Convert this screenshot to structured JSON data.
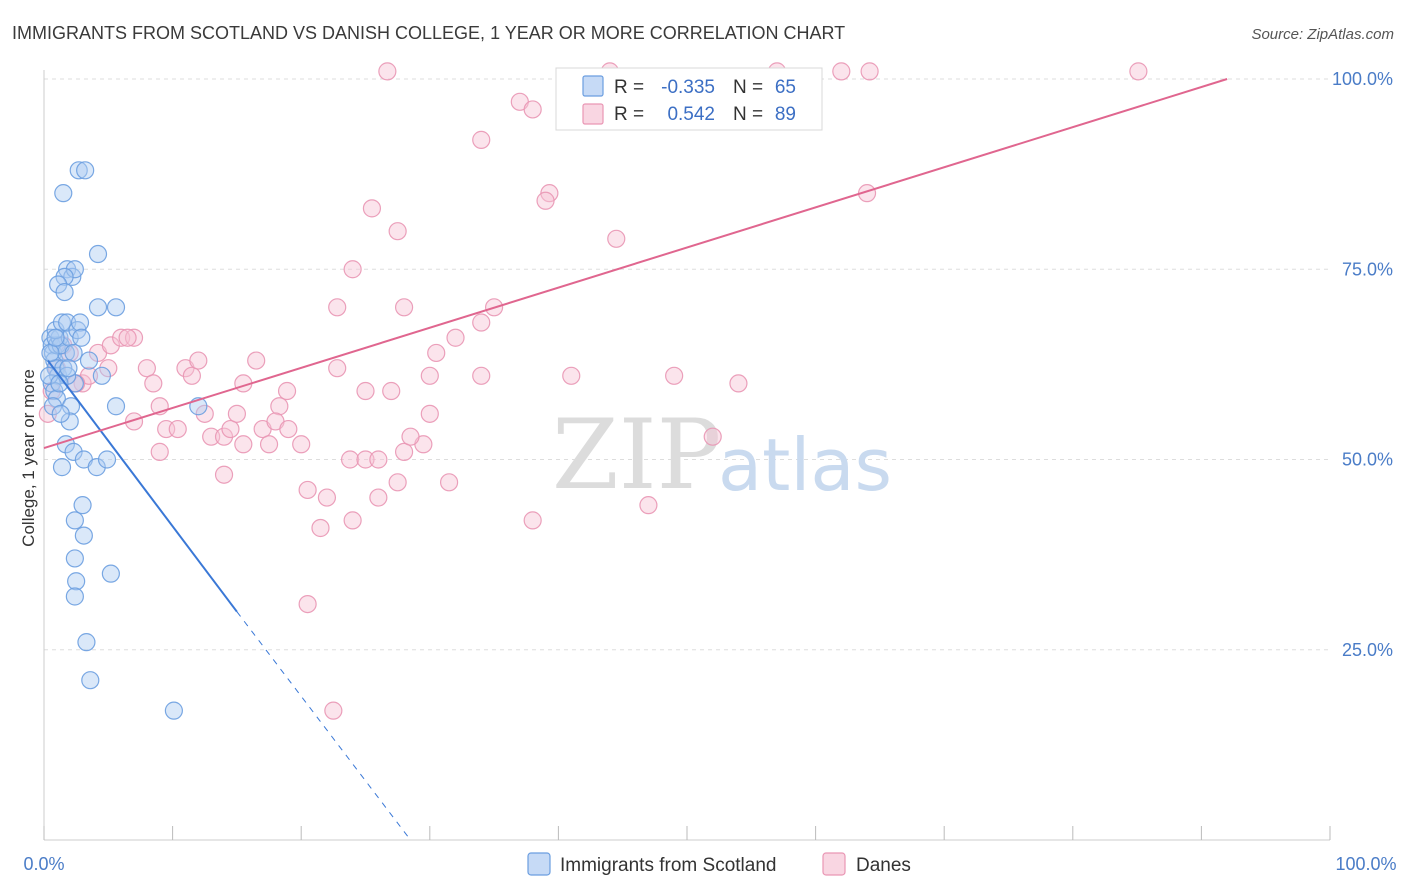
{
  "title": "IMMIGRANTS FROM SCOTLAND VS DANISH COLLEGE, 1 YEAR OR MORE CORRELATION CHART",
  "source": "Source: ZipAtlas.com",
  "watermark": {
    "zip": "ZIP",
    "atlas": "atlas"
  },
  "stats": {
    "r_label": "R =",
    "n_label": "N =",
    "scotland": {
      "r": "-0.335",
      "n": "65"
    },
    "danes": {
      "r": "0.542",
      "n": "89"
    }
  },
  "colors": {
    "scotland_fill": "#aecbf2",
    "scotland_stroke": "#6b9ee0",
    "scotland_line": "#3a78d6",
    "danes_fill": "#f7c4d5",
    "danes_stroke": "#e996b4",
    "danes_line": "#e0668f",
    "tick_text": "#4a7cc7",
    "grid": "#dddddd"
  },
  "chart_data": {
    "type": "scatter",
    "title": "IMMIGRANTS FROM SCOTLAND VS DANISH COLLEGE, 1 YEAR OR MORE CORRELATION CHART",
    "xlabel": "",
    "ylabel": "College, 1 year or more",
    "xlim": [
      0,
      100
    ],
    "ylim": [
      0,
      100
    ],
    "x_tick_labels": [
      "0.0%",
      "100.0%"
    ],
    "y_tick_labels": [
      "100.0%",
      "75.0%",
      "50.0%",
      "25.0%"
    ],
    "y_ticks": [
      100,
      75,
      50,
      25
    ],
    "legend": [
      "Immigrants from Scotland",
      "Danes"
    ],
    "series": [
      {
        "name": "Immigrants from Scotland",
        "r": -0.335,
        "n": 65,
        "trend": {
          "x0": 0.3,
          "y0": 63.0,
          "x1": 15.0,
          "y1": 30.0,
          "dash_to_x": 28.5,
          "dash_to_y": 0.0
        },
        "points": [
          [
            0.5,
            66
          ],
          [
            0.6,
            65
          ],
          [
            0.7,
            64
          ],
          [
            0.8,
            63
          ],
          [
            1.0,
            65
          ],
          [
            1.2,
            66
          ],
          [
            0.9,
            62
          ],
          [
            1.1,
            61
          ],
          [
            0.6,
            60
          ],
          [
            0.8,
            59
          ],
          [
            1.0,
            58
          ],
          [
            0.7,
            57
          ],
          [
            1.5,
            62
          ],
          [
            1.7,
            64
          ],
          [
            1.3,
            65
          ],
          [
            2.0,
            66
          ],
          [
            0.9,
            67
          ],
          [
            1.4,
            68
          ],
          [
            1.8,
            68
          ],
          [
            2.3,
            64
          ],
          [
            2.6,
            67
          ],
          [
            2.8,
            68
          ],
          [
            3.5,
            63
          ],
          [
            4.2,
            70
          ],
          [
            5.6,
            70
          ],
          [
            4.5,
            61
          ],
          [
            1.8,
            75
          ],
          [
            2.2,
            74
          ],
          [
            2.4,
            75
          ],
          [
            1.6,
            74
          ],
          [
            1.1,
            73
          ],
          [
            1.6,
            72
          ],
          [
            2.7,
            88
          ],
          [
            3.2,
            88
          ],
          [
            1.5,
            85
          ],
          [
            4.2,
            77
          ],
          [
            2.1,
            57
          ],
          [
            2.0,
            55
          ],
          [
            1.3,
            56
          ],
          [
            2.4,
            60
          ],
          [
            1.8,
            61
          ],
          [
            5.6,
            57
          ],
          [
            12.0,
            57
          ],
          [
            1.7,
            52
          ],
          [
            2.3,
            51
          ],
          [
            1.4,
            49
          ],
          [
            3.1,
            50
          ],
          [
            4.1,
            49
          ],
          [
            4.9,
            50
          ],
          [
            2.4,
            42
          ],
          [
            3.0,
            44
          ],
          [
            3.1,
            40
          ],
          [
            2.4,
            37
          ],
          [
            2.5,
            34
          ],
          [
            2.4,
            32
          ],
          [
            5.2,
            35
          ],
          [
            3.3,
            26
          ],
          [
            3.6,
            21
          ],
          [
            10.1,
            17
          ],
          [
            0.4,
            61
          ],
          [
            0.5,
            64
          ],
          [
            0.9,
            66
          ],
          [
            1.9,
            62
          ],
          [
            2.9,
            66
          ],
          [
            1.2,
            60
          ]
        ]
      },
      {
        "name": "Danes",
        "r": 0.542,
        "n": 89,
        "trend": {
          "x0": 0.0,
          "y0": 51.5,
          "x1": 92.0,
          "y1": 100.0
        },
        "points": [
          [
            26.7,
            101
          ],
          [
            44.0,
            101
          ],
          [
            57.0,
            101
          ],
          [
            62.0,
            101
          ],
          [
            64.2,
            101
          ],
          [
            85.1,
            101
          ],
          [
            37.0,
            97
          ],
          [
            38.0,
            96
          ],
          [
            34.0,
            92
          ],
          [
            39.3,
            85
          ],
          [
            39.0,
            84
          ],
          [
            64.0,
            85
          ],
          [
            25.5,
            83
          ],
          [
            27.5,
            80
          ],
          [
            44.5,
            79
          ],
          [
            24.0,
            75
          ],
          [
            28.0,
            70
          ],
          [
            22.8,
            70
          ],
          [
            35.0,
            70
          ],
          [
            34.0,
            68
          ],
          [
            32.0,
            66
          ],
          [
            30.5,
            64
          ],
          [
            1.5,
            65
          ],
          [
            2.0,
            64
          ],
          [
            1.0,
            62
          ],
          [
            3.0,
            60
          ],
          [
            4.2,
            64
          ],
          [
            5.2,
            65
          ],
          [
            6.0,
            66
          ],
          [
            7.0,
            66
          ],
          [
            8.0,
            62
          ],
          [
            8.5,
            60
          ],
          [
            9.0,
            57
          ],
          [
            11.0,
            62
          ],
          [
            11.5,
            61
          ],
          [
            12.0,
            63
          ],
          [
            15.5,
            60
          ],
          [
            16.5,
            63
          ],
          [
            18.9,
            59
          ],
          [
            18.3,
            57
          ],
          [
            22.8,
            62
          ],
          [
            25.0,
            59
          ],
          [
            27.0,
            59
          ],
          [
            30.0,
            61
          ],
          [
            34.0,
            61
          ],
          [
            41.0,
            61
          ],
          [
            49.0,
            61
          ],
          [
            54.0,
            60
          ],
          [
            7.0,
            55
          ],
          [
            9.5,
            54
          ],
          [
            10.4,
            54
          ],
          [
            12.5,
            56
          ],
          [
            13.0,
            53
          ],
          [
            14.0,
            53
          ],
          [
            14.5,
            54
          ],
          [
            15.0,
            56
          ],
          [
            15.5,
            52
          ],
          [
            17.0,
            54
          ],
          [
            17.5,
            52
          ],
          [
            18.0,
            55
          ],
          [
            19.0,
            54
          ],
          [
            20.0,
            52
          ],
          [
            14.0,
            48
          ],
          [
            20.5,
            46
          ],
          [
            22.0,
            45
          ],
          [
            23.8,
            50
          ],
          [
            25.0,
            50
          ],
          [
            26.0,
            50
          ],
          [
            28.0,
            51
          ],
          [
            29.5,
            52
          ],
          [
            30.0,
            56
          ],
          [
            28.5,
            53
          ],
          [
            31.5,
            47
          ],
          [
            27.5,
            47
          ],
          [
            26.0,
            45
          ],
          [
            38.0,
            42
          ],
          [
            24.0,
            42
          ],
          [
            21.5,
            41
          ],
          [
            47.0,
            44
          ],
          [
            52.0,
            53
          ],
          [
            20.5,
            31
          ],
          [
            22.5,
            17
          ],
          [
            0.3,
            56
          ],
          [
            0.6,
            59
          ],
          [
            3.5,
            61
          ],
          [
            5.0,
            62
          ],
          [
            9.0,
            51
          ],
          [
            6.5,
            66
          ],
          [
            2.5,
            60
          ]
        ]
      }
    ]
  }
}
